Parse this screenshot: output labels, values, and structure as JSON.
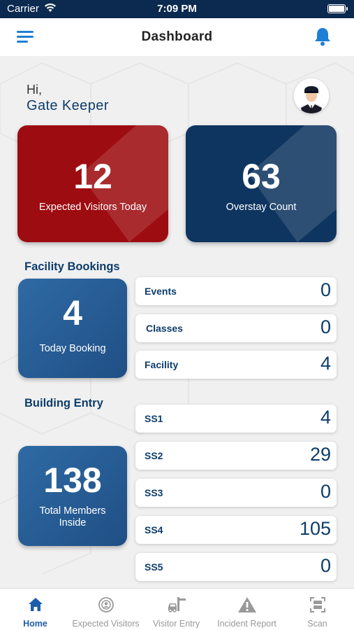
{
  "status_bar": {
    "carrier": "Carrier",
    "time": "7:09 PM"
  },
  "header": {
    "title": "Dashboard",
    "menu_icon": "hamburger-icon",
    "bell_icon": "bell-icon"
  },
  "greeting": {
    "hi": "Hi,",
    "name": "Gate Keeper"
  },
  "cards": {
    "expected": {
      "value": "12",
      "label": "Expected Visitors Today",
      "color": "#9d0c10"
    },
    "overstay": {
      "value": "63",
      "label": "Overstay Count",
      "color": "#0e3560"
    }
  },
  "facility": {
    "title": "Facility Bookings",
    "today": {
      "value": "4",
      "label": "Today Booking"
    },
    "rows": [
      {
        "label": "Events",
        "value": "0"
      },
      {
        "label": "Classes",
        "value": "0"
      },
      {
        "label": "Facility",
        "value": "4"
      }
    ]
  },
  "building": {
    "title": "Building Entry",
    "members": {
      "value": "138",
      "label": "Total Members Inside"
    },
    "rows": [
      {
        "label": "SS1",
        "value": "4"
      },
      {
        "label": "SS2",
        "value": "29"
      },
      {
        "label": "SS3",
        "value": "0"
      },
      {
        "label": "SS4",
        "value": "105"
      },
      {
        "label": "SS5",
        "value": "0"
      }
    ]
  },
  "nav": [
    {
      "label": "Home",
      "icon": "home-icon",
      "active": true
    },
    {
      "label": "Expected Visitors",
      "icon": "visitors-icon"
    },
    {
      "label": "Visitor Entry",
      "icon": "car-icon"
    },
    {
      "label": "Incident Report",
      "icon": "warning-icon"
    },
    {
      "label": "Scan",
      "icon": "scan-icon"
    }
  ],
  "colors": {
    "accent": "#1d5ea8",
    "navy": "#0d3d6b",
    "red": "#9d0c10"
  }
}
